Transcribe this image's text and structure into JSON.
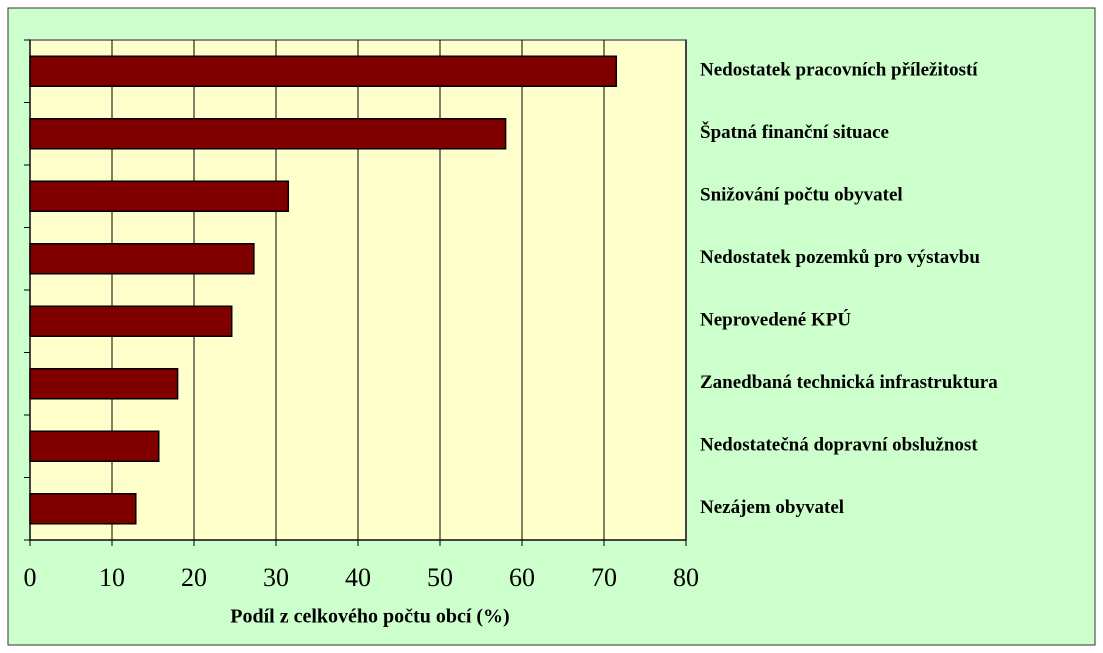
{
  "chart_data": {
    "type": "bar",
    "orientation": "horizontal",
    "xlabel": "Podíl z celkového počtu obcí (%)",
    "categories": [
      "Nedostatek pracovních příležitostí",
      "Špatná finanční situace",
      "Snižování počtu obyvatel",
      "Nedostatek pozemků pro výstavbu",
      "Neprovedené KPÚ",
      "Zanedbaná technická infrastruktura",
      "Nedostatečná dopravní obslužnost",
      "Nezájem obyvatel"
    ],
    "values": [
      71.5,
      58,
      31.5,
      27.3,
      24.6,
      18,
      15.7,
      12.9
    ],
    "color": "#800000",
    "xlim": [
      0,
      80
    ],
    "xticks": [
      0,
      10,
      20,
      30,
      40,
      50,
      60,
      70,
      80
    ],
    "grid": true
  }
}
